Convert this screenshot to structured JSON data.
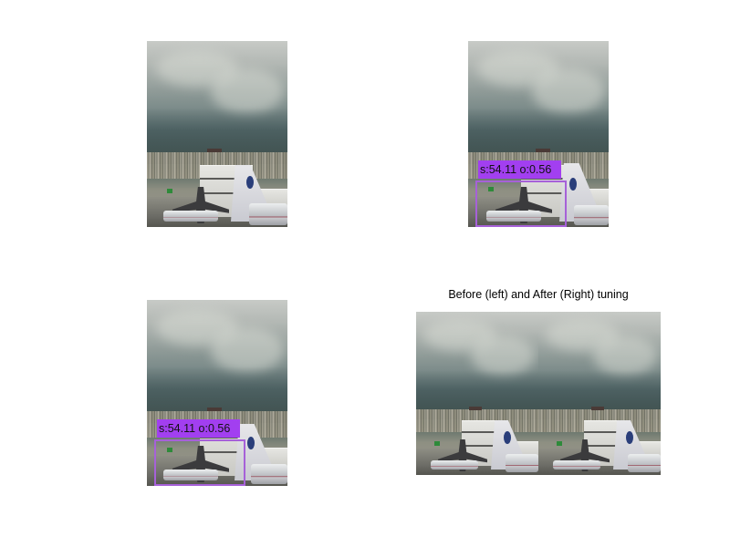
{
  "figure": {
    "panels": [
      {
        "id": "top-left",
        "title": "",
        "detection": null
      },
      {
        "id": "top-right",
        "title": "",
        "detection": {
          "label": "s:54.11 o:0.56",
          "box_color": "#a661d8",
          "label_bg": "#a23ff0"
        }
      },
      {
        "id": "bottom-left",
        "title": "",
        "detection": {
          "label": "s:54.11 o:0.56",
          "box_color": "#a661d8",
          "label_bg": "#a23ff0"
        }
      },
      {
        "id": "bottom-right",
        "title": "Before (left) and After (Right) tuning",
        "detection": null
      }
    ]
  }
}
